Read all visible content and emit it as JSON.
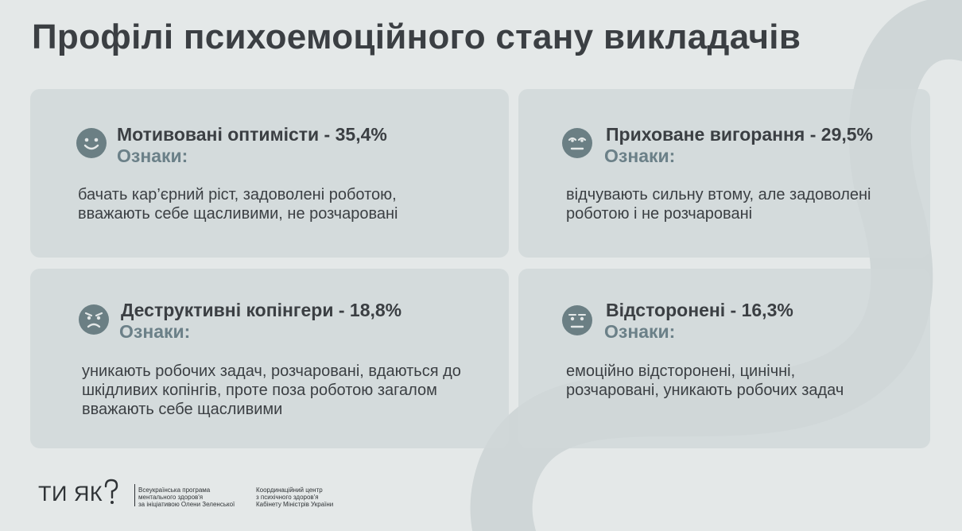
{
  "title": "Профілі психоемоційного стану викладачів",
  "profiles": [
    {
      "name": "Мотивовані оптимісти - 35,4%",
      "signs_label": "Ознаки:",
      "description": "бачать кар’єрний ріст, задоволені роботою, вважають себе щасливими, не розчаровані",
      "icon": "smiling-face-icon"
    },
    {
      "name": "Приховане вигорання - 29,5%",
      "signs_label": "Ознаки:",
      "description": "відчувають сильну втому, але задоволені роботою і не розчаровані",
      "icon": "tired-face-icon"
    },
    {
      "name": "Деструктивні копінгери - 18,8%",
      "signs_label": "Ознаки:",
      "description": "уникають робочих задач, розчаровані, вдаються до шкідливих копінгів, проте поза роботою загалом вважають себе щасливими",
      "icon": "frowning-face-icon"
    },
    {
      "name": "Відсторонені - 16,3%",
      "signs_label": "Ознаки:",
      "description": "емоційно відсторонені, цинічні, розчаровані, уникають робочих задач",
      "icon": "neutral-face-icon"
    }
  ],
  "footer": {
    "logo_text": "ТИ ЯК",
    "program_lines": [
      "Всеукраїнська програма",
      "ментального здоров'я",
      "за ініціативою Олени Зеленської"
    ],
    "center_lines": [
      "Координаційний центр",
      "з психічного здоров'я",
      "Кабінету Міністрів України"
    ]
  },
  "colors": {
    "background": "#e4e8e8",
    "card": "#d0d7d8",
    "text": "#3b3f43",
    "accent": "#6b8088",
    "icon": "#6b7f84"
  }
}
